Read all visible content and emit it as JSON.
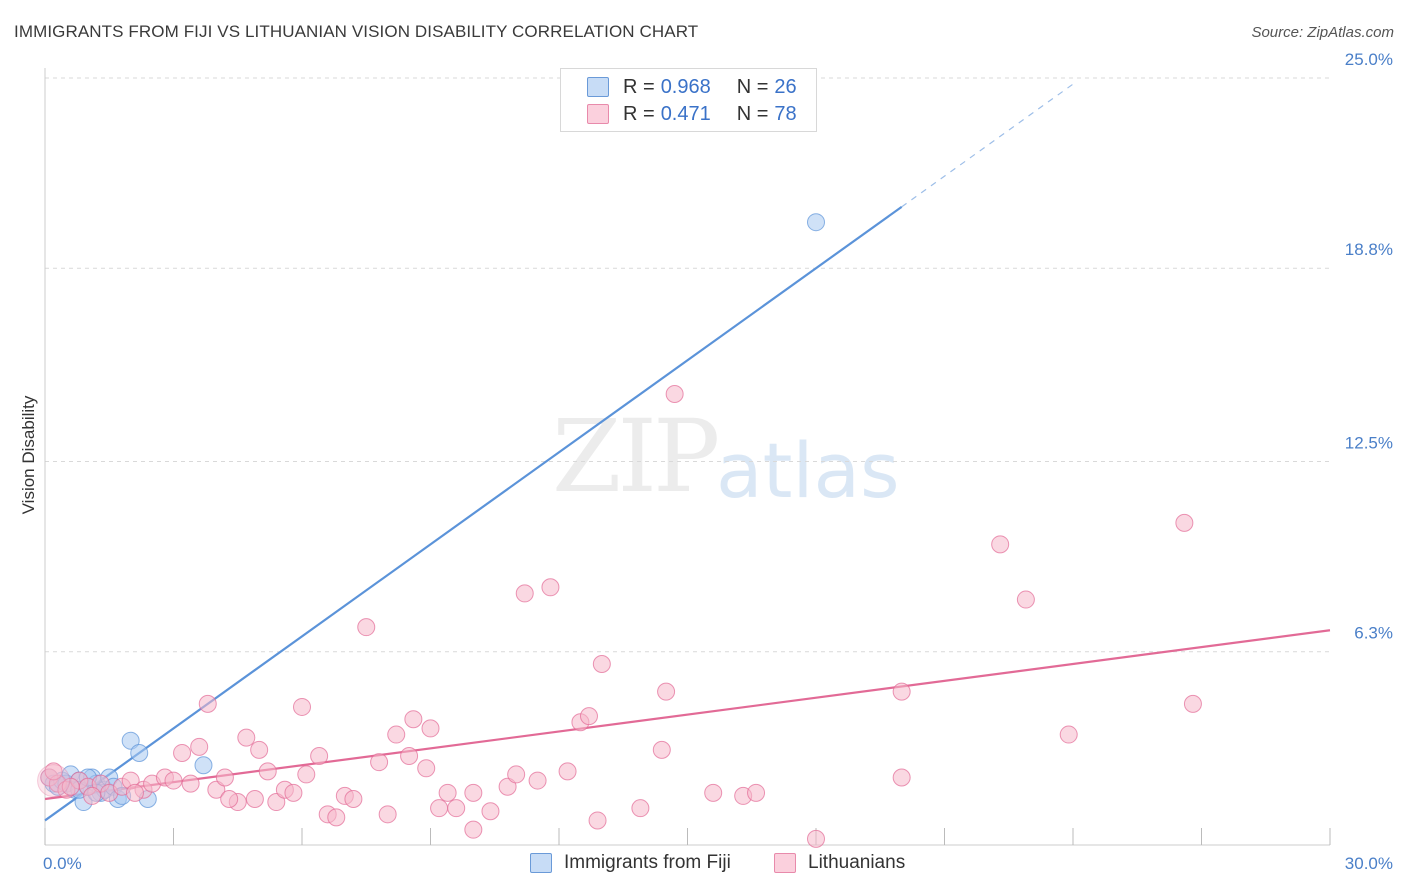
{
  "title": "IMMIGRANTS FROM FIJI VS LITHUANIAN VISION DISABILITY CORRELATION CHART",
  "source": "Source: ZipAtlas.com",
  "watermark": {
    "zip": "ZIP",
    "atlas": "atlas"
  },
  "legend_stats": [
    {
      "r_label": "R =",
      "r_value": "0.968",
      "n_label": "N =",
      "n_value": "26",
      "color": "#a8c8f0"
    },
    {
      "r_label": "R =",
      "r_value": "0.471",
      "n_label": "N =",
      "n_value": "78",
      "color": "#f5b8cb"
    }
  ],
  "bottom_legend": [
    {
      "label": "Immigrants from Fiji",
      "color": "#a8c8f0"
    },
    {
      "label": "Lithuanians",
      "color": "#f5b8cb"
    }
  ],
  "chart_data": {
    "type": "scatter",
    "title": "IMMIGRANTS FROM FIJI VS LITHUANIAN VISION DISABILITY CORRELATION CHART",
    "xlabel": "",
    "ylabel": "Vision Disability",
    "xlim": [
      0,
      30
    ],
    "ylim": [
      0,
      25
    ],
    "x_tick_labels": [
      {
        "value": 0,
        "label": "0.0%"
      },
      {
        "value": 30,
        "label": "30.0%"
      }
    ],
    "y_tick_labels": [
      {
        "value": 6.3,
        "label": "6.3%"
      },
      {
        "value": 12.5,
        "label": "12.5%"
      },
      {
        "value": 18.8,
        "label": "18.8%"
      },
      {
        "value": 25.0,
        "label": "25.0%"
      }
    ],
    "grid": "horizontal dashed",
    "legend_position": "top-center",
    "series": [
      {
        "name": "Immigrants from Fiji",
        "color": "#5b93d9",
        "fill": "#a8c8f0",
        "trend": {
          "x0": 0,
          "y0": 0.8,
          "x1": 20.0,
          "y1": 20.8,
          "dash_to_x": 24.0,
          "dash_to_y": 24.8
        },
        "points": [
          [
            0.1,
            2.2
          ],
          [
            0.2,
            2.0
          ],
          [
            0.3,
            1.9
          ],
          [
            0.4,
            2.1
          ],
          [
            0.5,
            2.0
          ],
          [
            0.6,
            2.3
          ],
          [
            0.7,
            1.8
          ],
          [
            0.8,
            2.1
          ],
          [
            0.9,
            1.4
          ],
          [
            1.0,
            1.9
          ],
          [
            1.1,
            2.2
          ],
          [
            1.2,
            2.0
          ],
          [
            1.3,
            1.7
          ],
          [
            1.4,
            1.8
          ],
          [
            1.5,
            2.2
          ],
          [
            1.6,
            1.9
          ],
          [
            1.7,
            1.5
          ],
          [
            1.8,
            1.6
          ],
          [
            2.0,
            3.4
          ],
          [
            2.2,
            3.0
          ],
          [
            2.4,
            1.5
          ],
          [
            3.7,
            2.6
          ],
          [
            1.2,
            1.7
          ],
          [
            0.8,
            1.8
          ],
          [
            1.0,
            2.2
          ],
          [
            18.0,
            20.3
          ]
        ]
      },
      {
        "name": "Lithuanians",
        "color": "#e26a96",
        "fill": "#f5b8cb",
        "trend": {
          "x0": 0,
          "y0": 1.5,
          "x1": 30,
          "y1": 7.0
        },
        "points": [
          [
            0.1,
            2.2
          ],
          [
            0.3,
            2.0
          ],
          [
            0.5,
            1.8
          ],
          [
            0.8,
            2.1
          ],
          [
            1.0,
            1.9
          ],
          [
            1.3,
            2.0
          ],
          [
            1.5,
            1.7
          ],
          [
            1.8,
            1.9
          ],
          [
            2.0,
            2.1
          ],
          [
            2.3,
            1.8
          ],
          [
            2.5,
            2.0
          ],
          [
            2.8,
            2.2
          ],
          [
            3.0,
            2.1
          ],
          [
            3.2,
            3.0
          ],
          [
            3.4,
            2.0
          ],
          [
            3.6,
            3.2
          ],
          [
            3.8,
            4.6
          ],
          [
            4.0,
            1.8
          ],
          [
            4.2,
            2.2
          ],
          [
            4.5,
            1.4
          ],
          [
            4.7,
            3.5
          ],
          [
            4.9,
            1.5
          ],
          [
            5.0,
            3.1
          ],
          [
            5.2,
            2.4
          ],
          [
            5.4,
            1.4
          ],
          [
            5.6,
            1.8
          ],
          [
            5.8,
            1.7
          ],
          [
            6.0,
            4.5
          ],
          [
            6.1,
            2.3
          ],
          [
            6.4,
            2.9
          ],
          [
            6.6,
            1.0
          ],
          [
            6.8,
            0.9
          ],
          [
            7.0,
            1.6
          ],
          [
            7.2,
            1.5
          ],
          [
            7.5,
            7.1
          ],
          [
            7.8,
            2.7
          ],
          [
            8.0,
            1.0
          ],
          [
            8.2,
            3.6
          ],
          [
            8.5,
            2.9
          ],
          [
            8.6,
            4.1
          ],
          [
            8.9,
            2.5
          ],
          [
            9.0,
            3.8
          ],
          [
            9.2,
            1.2
          ],
          [
            9.4,
            1.7
          ],
          [
            9.6,
            1.2
          ],
          [
            10.0,
            0.5
          ],
          [
            10.0,
            1.7
          ],
          [
            10.4,
            1.1
          ],
          [
            10.8,
            1.9
          ],
          [
            11.0,
            2.3
          ],
          [
            11.2,
            8.2
          ],
          [
            11.5,
            2.1
          ],
          [
            11.8,
            8.4
          ],
          [
            12.2,
            2.4
          ],
          [
            12.5,
            4.0
          ],
          [
            12.7,
            4.2
          ],
          [
            12.9,
            0.8
          ],
          [
            13.0,
            5.9
          ],
          [
            13.9,
            1.2
          ],
          [
            14.4,
            3.1
          ],
          [
            14.7,
            14.7
          ],
          [
            14.5,
            5.0
          ],
          [
            15.6,
            1.7
          ],
          [
            16.3,
            1.6
          ],
          [
            16.6,
            1.7
          ],
          [
            18.0,
            0.2
          ],
          [
            20.0,
            2.2
          ],
          [
            20.0,
            5.0
          ],
          [
            22.3,
            9.8
          ],
          [
            22.9,
            8.0
          ],
          [
            23.9,
            3.6
          ],
          [
            26.6,
            10.5
          ],
          [
            26.8,
            4.6
          ],
          [
            0.2,
            2.4
          ],
          [
            0.6,
            1.9
          ],
          [
            1.1,
            1.6
          ],
          [
            2.1,
            1.7
          ],
          [
            4.3,
            1.5
          ]
        ]
      }
    ]
  }
}
